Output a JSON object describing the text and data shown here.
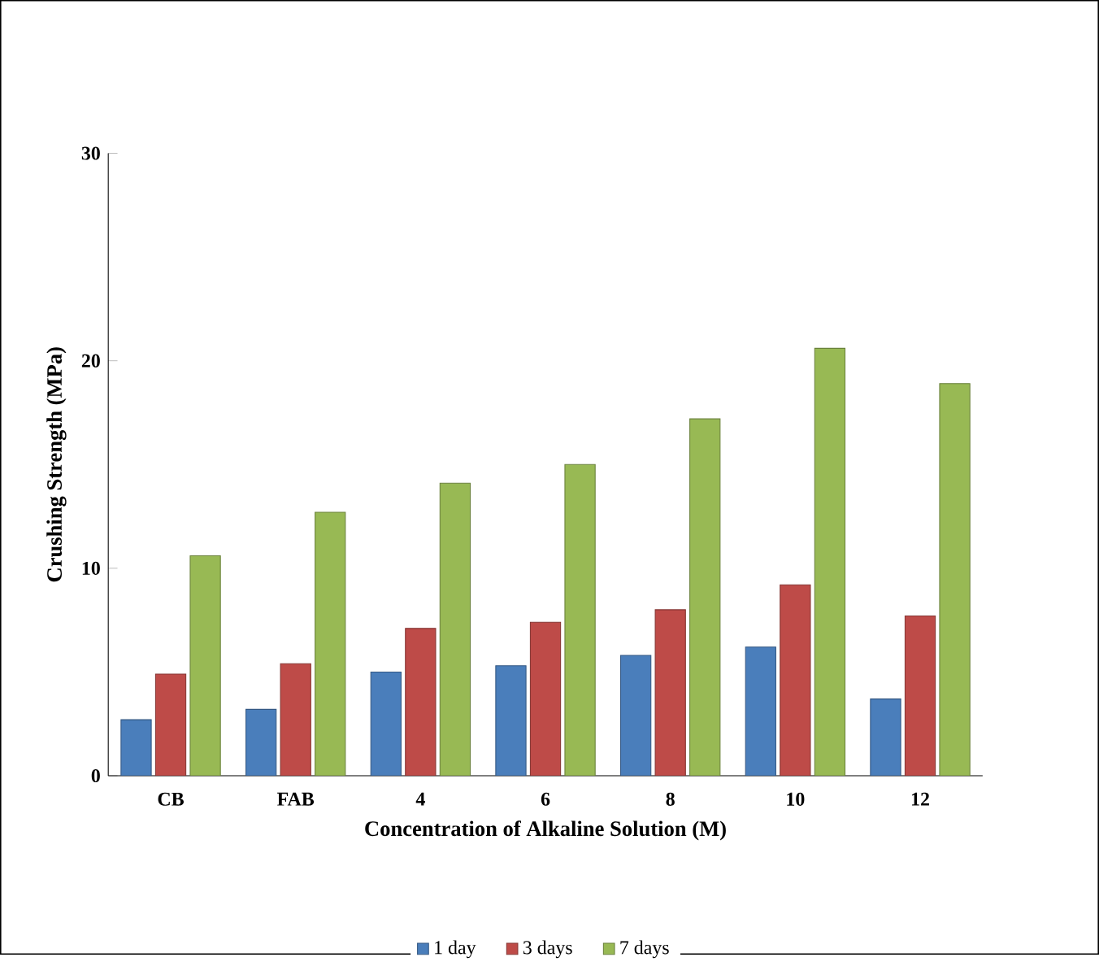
{
  "chart_data": {
    "type": "bar",
    "xlabel": "Concentration of Alkaline Solution  (M)",
    "ylabel": "Crushing Strength (MPa)",
    "categories": [
      "CB",
      "FAB",
      "4",
      "6",
      "8",
      "10",
      "12"
    ],
    "series": [
      {
        "name": "1 day",
        "color": "#4a7ebb",
        "values": [
          2.7,
          3.2,
          5.0,
          5.3,
          5.8,
          6.2,
          3.7
        ]
      },
      {
        "name": "3 days",
        "color": "#be4b48",
        "values": [
          4.9,
          5.4,
          7.1,
          7.4,
          8.0,
          9.2,
          7.7
        ]
      },
      {
        "name": "7 days",
        "color": "#98b954",
        "values": [
          10.6,
          12.7,
          14.1,
          15.0,
          17.2,
          20.6,
          18.9
        ]
      }
    ],
    "ylim": [
      0,
      30
    ],
    "yticks": [
      0,
      10,
      20,
      30
    ],
    "grid": false,
    "legend": "bottom"
  }
}
